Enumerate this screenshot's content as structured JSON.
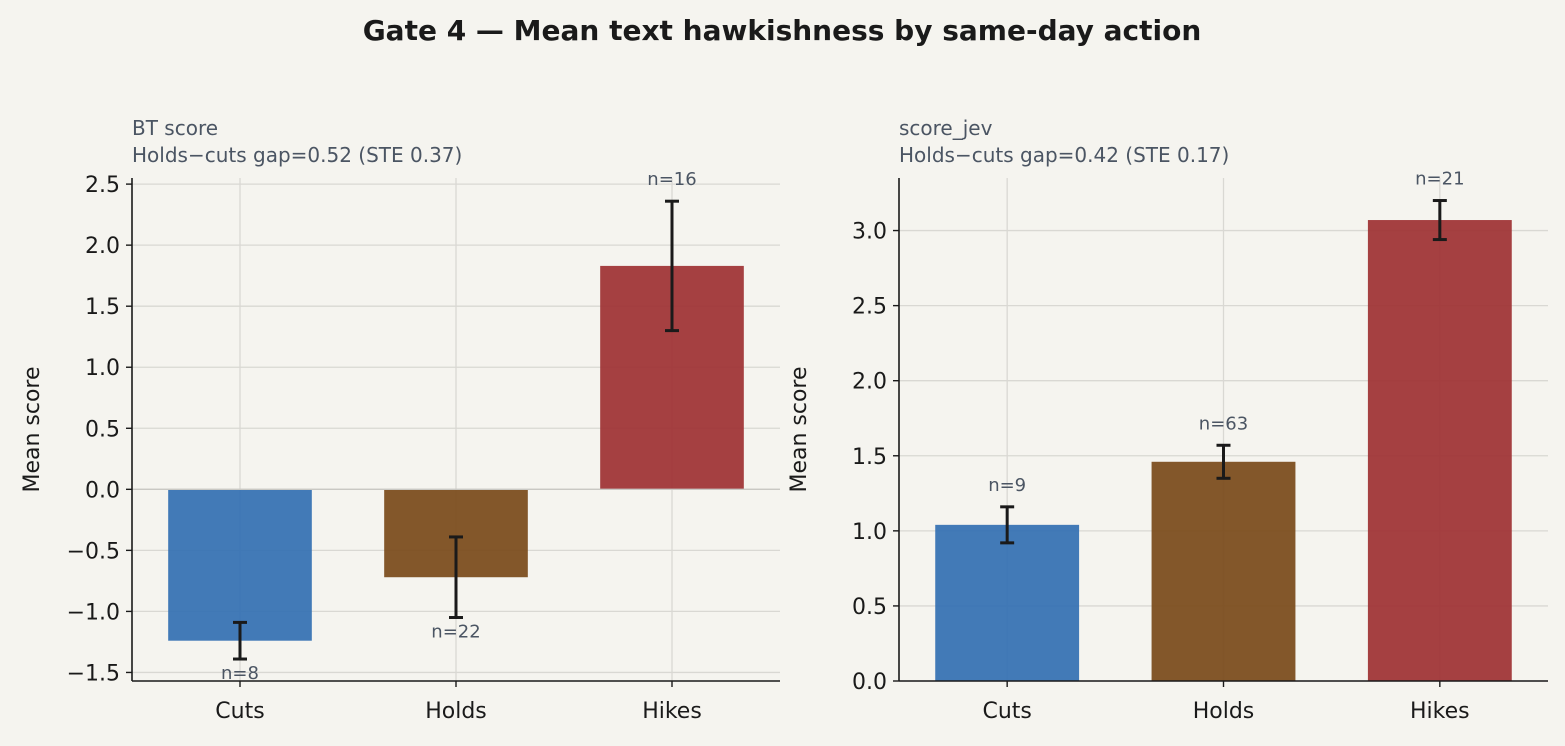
{
  "figure": {
    "title": "Gate 4 — Mean text hawkishness by same-day action"
  },
  "colors": {
    "background": "#f5f4ef",
    "grid": "#d9d8d3",
    "axis": "#1a1a1a",
    "subtitle": "#4b5563",
    "error_bar": "#1a1a1a",
    "bars": [
      "#3470b3",
      "#7a4a1b",
      "#9e3134"
    ]
  },
  "chart_data": [
    {
      "type": "bar",
      "title": "BT score",
      "subtitle": "Holds−cuts gap=0.52 (STE 0.37)",
      "ylabel": "Mean score",
      "xlabel": "",
      "categories": [
        "Cuts",
        "Holds",
        "Hikes"
      ],
      "values": [
        -1.24,
        -0.72,
        1.83
      ],
      "errors": [
        0.15,
        0.33,
        0.53
      ],
      "counts": [
        "n=8",
        "n=22",
        "n=16"
      ],
      "ylim": [
        -1.57,
        2.55
      ],
      "yticks": [
        -1.5,
        -1.0,
        -0.5,
        0.0,
        0.5,
        1.0,
        1.5,
        2.0,
        2.5
      ],
      "ytick_labels": [
        "−1.5",
        "−1.0",
        "−0.5",
        "0.0",
        "0.5",
        "1.0",
        "1.5",
        "2.0",
        "2.5"
      ],
      "grid": true,
      "zero_line": true
    },
    {
      "type": "bar",
      "title": "score_jev",
      "subtitle": "Holds−cuts gap=0.42 (STE 0.17)",
      "ylabel": "Mean score",
      "xlabel": "",
      "categories": [
        "Cuts",
        "Holds",
        "Hikes"
      ],
      "values": [
        1.04,
        1.46,
        3.07
      ],
      "errors": [
        0.12,
        0.11,
        0.13
      ],
      "counts": [
        "n=9",
        "n=63",
        "n=21"
      ],
      "ylim": [
        0.0,
        3.35
      ],
      "yticks": [
        0.0,
        0.5,
        1.0,
        1.5,
        2.0,
        2.5,
        3.0
      ],
      "ytick_labels": [
        "0.0",
        "0.5",
        "1.0",
        "1.5",
        "2.0",
        "2.5",
        "3.0"
      ],
      "grid": true,
      "zero_line": false
    }
  ]
}
